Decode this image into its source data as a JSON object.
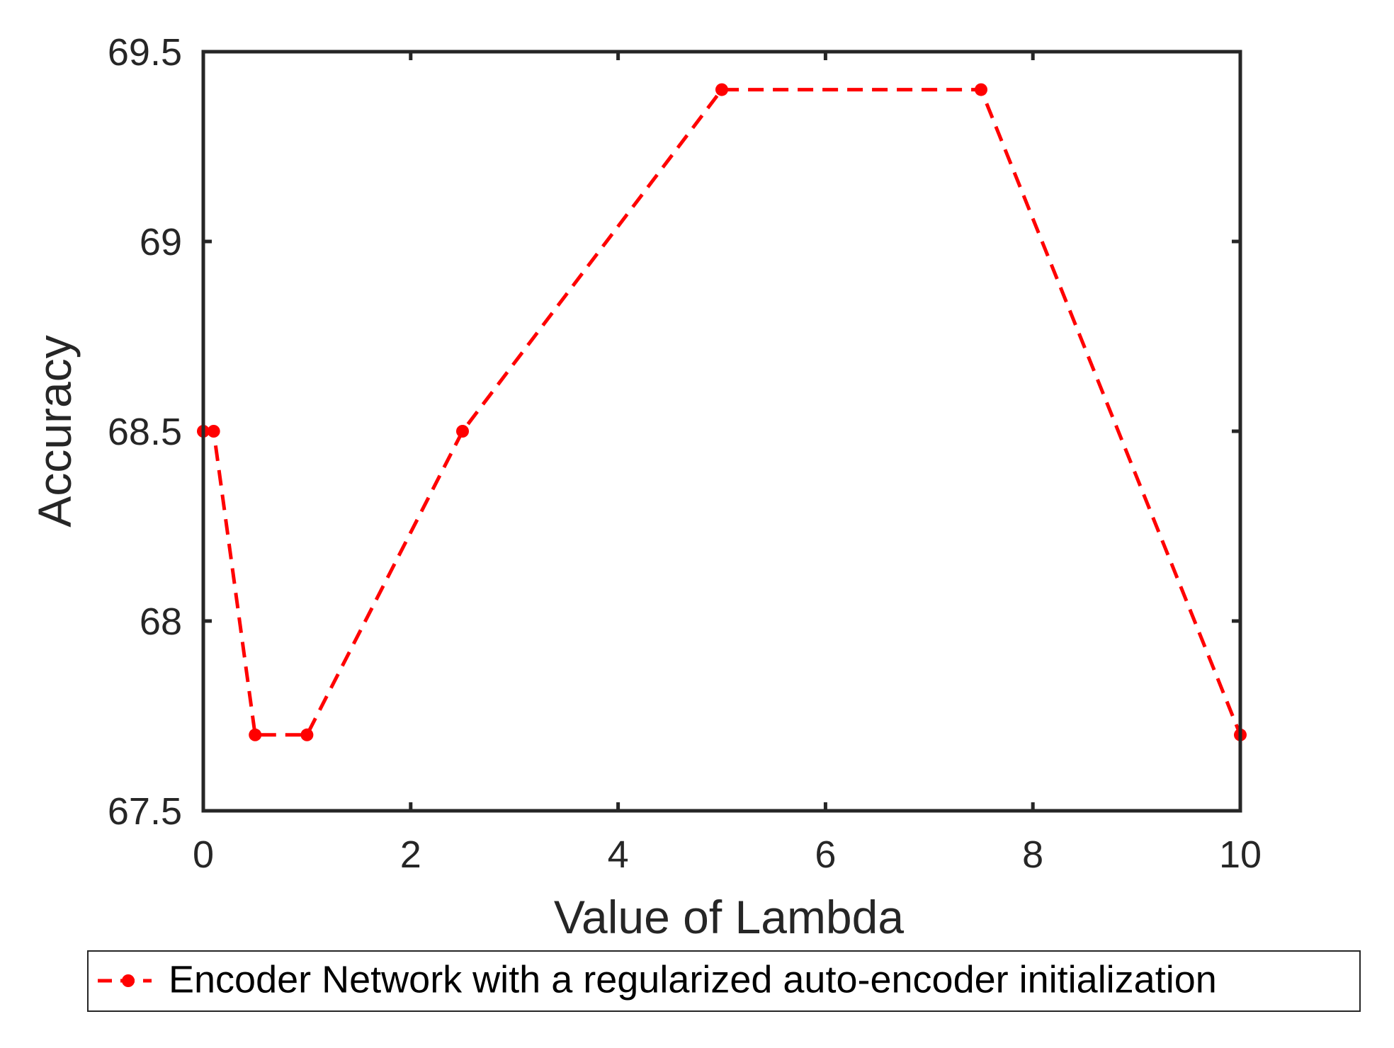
{
  "chart_data": {
    "type": "line",
    "xlabel": "Value of Lambda",
    "ylabel": "Accuracy",
    "xlim": [
      0,
      10
    ],
    "ylim": [
      67.5,
      69.5
    ],
    "xticks": [
      0,
      2,
      4,
      6,
      8,
      10
    ],
    "yticks": [
      67.5,
      68,
      68.5,
      69,
      69.5
    ],
    "xtick_labels": [
      "0",
      "2",
      "4",
      "6",
      "8",
      "10"
    ],
    "ytick_labels": [
      "67.5",
      "68",
      "68.5",
      "69",
      "69.5"
    ],
    "grid": false,
    "legend_position": "bottom-outside",
    "series": [
      {
        "name": "Encoder Network with a regularized auto-encoder initialization",
        "color": "#ff0000",
        "line_style": "dashed",
        "marker": "circle",
        "x": [
          0,
          0.1,
          0.5,
          1,
          2.5,
          5,
          7.5,
          10
        ],
        "y": [
          68.5,
          68.5,
          67.7,
          67.7,
          68.5,
          69.4,
          69.4,
          67.7
        ]
      }
    ]
  }
}
